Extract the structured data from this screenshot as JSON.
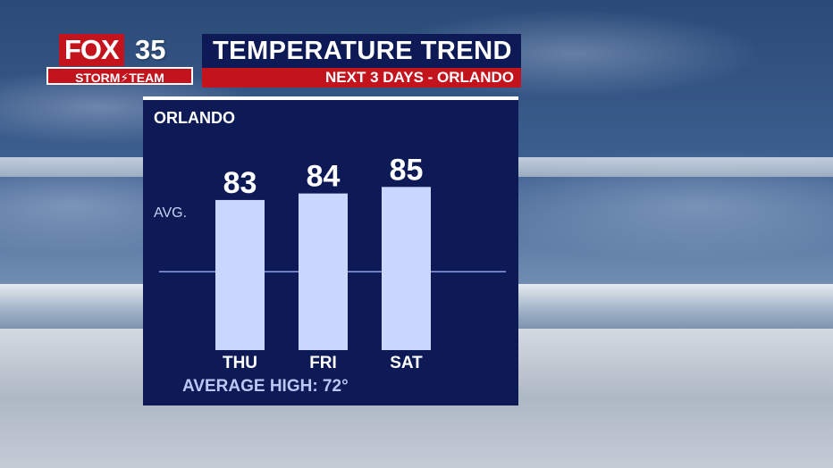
{
  "header": {
    "logo_fox": "FOX",
    "logo_number": "35",
    "logo_team": "STORM⚡TEAM",
    "title": "TEMPERATURE TREND",
    "subtitle": "NEXT 3 DAYS - ORLANDO"
  },
  "panel": {
    "city": "ORLANDO",
    "avg_label": "AVG.",
    "footer": "AVERAGE HIGH: 72°"
  },
  "colors": {
    "navy": "#0d1a56",
    "red": "#c3141e",
    "bar": "#c9d7ff",
    "avg_line": "#8a9ee6"
  },
  "chart_data": {
    "type": "bar",
    "categories": [
      "THU",
      "FRI",
      "SAT"
    ],
    "values": [
      83,
      84,
      85
    ],
    "reference_line": {
      "label": "AVG.",
      "value": 72
    },
    "title": "",
    "xlabel": "",
    "ylabel": "",
    "ylim": [
      60,
      86
    ],
    "grid": false
  }
}
